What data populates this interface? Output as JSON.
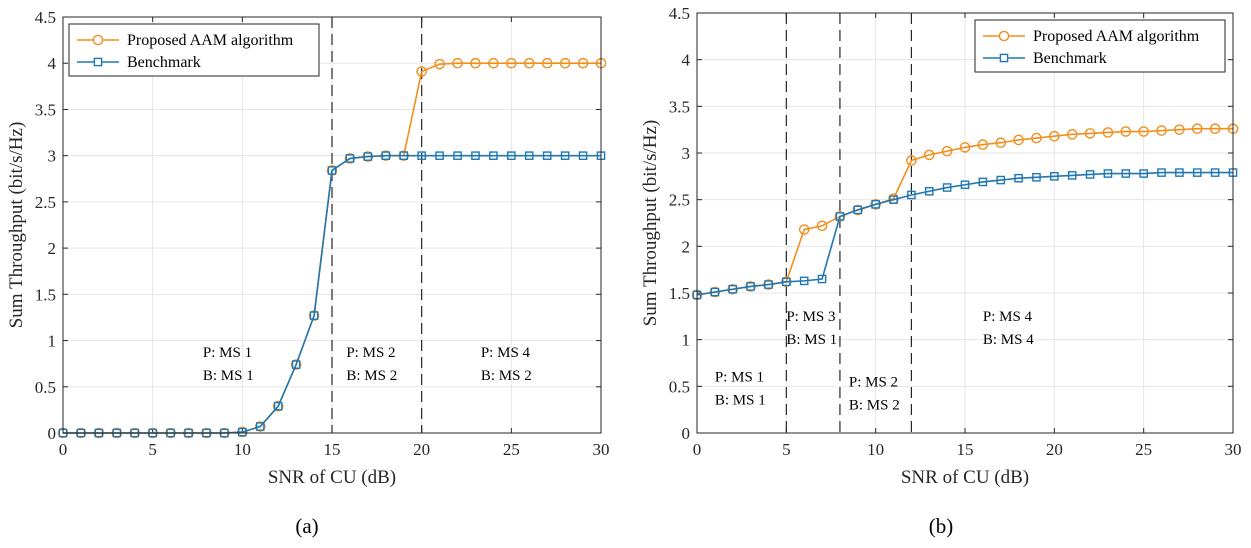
{
  "chart_data": [
    {
      "type": "line",
      "caption": "(a)",
      "xlabel": "SNR of CU (dB)",
      "ylabel": "Sum Throughput (bit/s/Hz)",
      "xlim": [
        0,
        30
      ],
      "ylim": [
        0,
        4.5
      ],
      "xticks": [
        "0",
        "5",
        "10",
        "15",
        "20",
        "25",
        "30"
      ],
      "yticks": [
        "0",
        "0.5",
        "1",
        "1.5",
        "2",
        "2.5",
        "3",
        "3.5",
        "4",
        "4.5"
      ],
      "grid": true,
      "legend": "top-left",
      "x": [
        0,
        1,
        2,
        3,
        4,
        5,
        6,
        7,
        8,
        9,
        10,
        11,
        12,
        13,
        14,
        15,
        16,
        17,
        18,
        19,
        20,
        21,
        22,
        23,
        24,
        25,
        26,
        27,
        28,
        29,
        30
      ],
      "series": [
        {
          "name": "Proposed AAM algorithm",
          "color": "#f28e1c",
          "marker": "circle",
          "values": [
            0,
            0,
            0,
            0,
            0,
            0,
            0,
            0,
            0,
            0,
            0.01,
            0.07,
            0.29,
            0.74,
            1.27,
            2.84,
            2.97,
            2.99,
            3.0,
            3.0,
            3.91,
            3.99,
            4.0,
            4.0,
            4.0,
            4.0,
            4.0,
            4.0,
            4.0,
            4.0,
            4.0
          ]
        },
        {
          "name": "Benchmark",
          "color": "#1f77b4",
          "marker": "square",
          "values": [
            0,
            0,
            0,
            0,
            0,
            0,
            0,
            0,
            0,
            0,
            0.01,
            0.07,
            0.29,
            0.74,
            1.27,
            2.84,
            2.97,
            2.99,
            3.0,
            3.0,
            3.0,
            3.0,
            3.0,
            3.0,
            3.0,
            3.0,
            3.0,
            3.0,
            3.0,
            3.0,
            3.0
          ]
        }
      ],
      "vlines": [
        15,
        20
      ],
      "annotations": [
        {
          "x": 7.8,
          "y": 0.82,
          "lines": [
            "P: MS 1",
            "B: MS 1"
          ]
        },
        {
          "x": 15.8,
          "y": 0.82,
          "lines": [
            "P: MS 2",
            "B: MS 2"
          ]
        },
        {
          "x": 23.3,
          "y": 0.82,
          "lines": [
            "P: MS 4",
            "B: MS 2"
          ]
        }
      ]
    },
    {
      "type": "line",
      "caption": "(b)",
      "xlabel": "SNR of CU (dB)",
      "ylabel": "Sum Throughput (bit/s/Hz)",
      "xlim": [
        0,
        30
      ],
      "ylim": [
        0,
        4.5
      ],
      "xticks": [
        "0",
        "5",
        "10",
        "15",
        "20",
        "25",
        "30"
      ],
      "yticks": [
        "0",
        "0.5",
        "1",
        "1.5",
        "2",
        "2.5",
        "3",
        "3.5",
        "4",
        "4.5"
      ],
      "grid": true,
      "legend": "top-right",
      "x": [
        0,
        1,
        2,
        3,
        4,
        5,
        6,
        7,
        8,
        9,
        10,
        11,
        12,
        13,
        14,
        15,
        16,
        17,
        18,
        19,
        20,
        21,
        22,
        23,
        24,
        25,
        26,
        27,
        28,
        29,
        30
      ],
      "series": [
        {
          "name": "Proposed AAM algorithm",
          "color": "#f28e1c",
          "marker": "circle",
          "values": [
            1.48,
            1.51,
            1.54,
            1.57,
            1.59,
            1.62,
            2.18,
            2.22,
            2.32,
            2.39,
            2.45,
            2.51,
            2.92,
            2.98,
            3.02,
            3.06,
            3.09,
            3.11,
            3.14,
            3.16,
            3.18,
            3.2,
            3.21,
            3.22,
            3.23,
            3.23,
            3.24,
            3.25,
            3.26,
            3.26,
            3.26
          ]
        },
        {
          "name": "Benchmark",
          "color": "#1f77b4",
          "marker": "square",
          "values": [
            1.48,
            1.51,
            1.54,
            1.57,
            1.59,
            1.62,
            1.63,
            1.65,
            2.32,
            2.39,
            2.45,
            2.5,
            2.55,
            2.59,
            2.63,
            2.66,
            2.69,
            2.71,
            2.73,
            2.74,
            2.75,
            2.76,
            2.77,
            2.78,
            2.78,
            2.78,
            2.79,
            2.79,
            2.79,
            2.79,
            2.79
          ]
        }
      ],
      "vlines": [
        5,
        8,
        12
      ],
      "annotations": [
        {
          "x": 1.0,
          "y": 0.55,
          "lines": [
            "P: MS 1",
            "B: MS 1"
          ]
        },
        {
          "x": 5.0,
          "y": 1.2,
          "lines": [
            "P: MS 3",
            "B: MS 1"
          ]
        },
        {
          "x": 8.5,
          "y": 0.5,
          "lines": [
            "P: MS 2",
            "B: MS 2"
          ]
        },
        {
          "x": 16.0,
          "y": 1.2,
          "lines": [
            "P: MS 4",
            "B: MS 4"
          ]
        }
      ]
    }
  ]
}
